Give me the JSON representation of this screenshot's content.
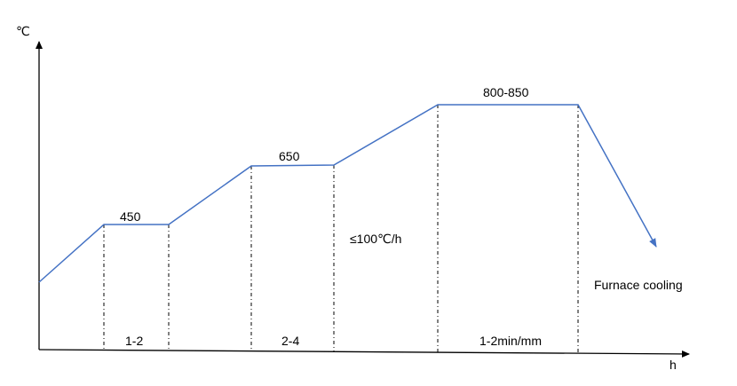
{
  "axes": {
    "y_unit": "℃",
    "x_unit": "h"
  },
  "temperatures": {
    "first_hold": "450",
    "second_hold": "650",
    "third_hold": "800-850"
  },
  "durations": {
    "first_hold": "1-2",
    "second_hold": "2-4",
    "third_hold": "1-2min/mm"
  },
  "heating_rate": "≤100℃/h",
  "cooling": "Furnace cooling",
  "colors": {
    "curve": "#4472c4",
    "axis": "#000000",
    "guide": "#000000"
  }
}
